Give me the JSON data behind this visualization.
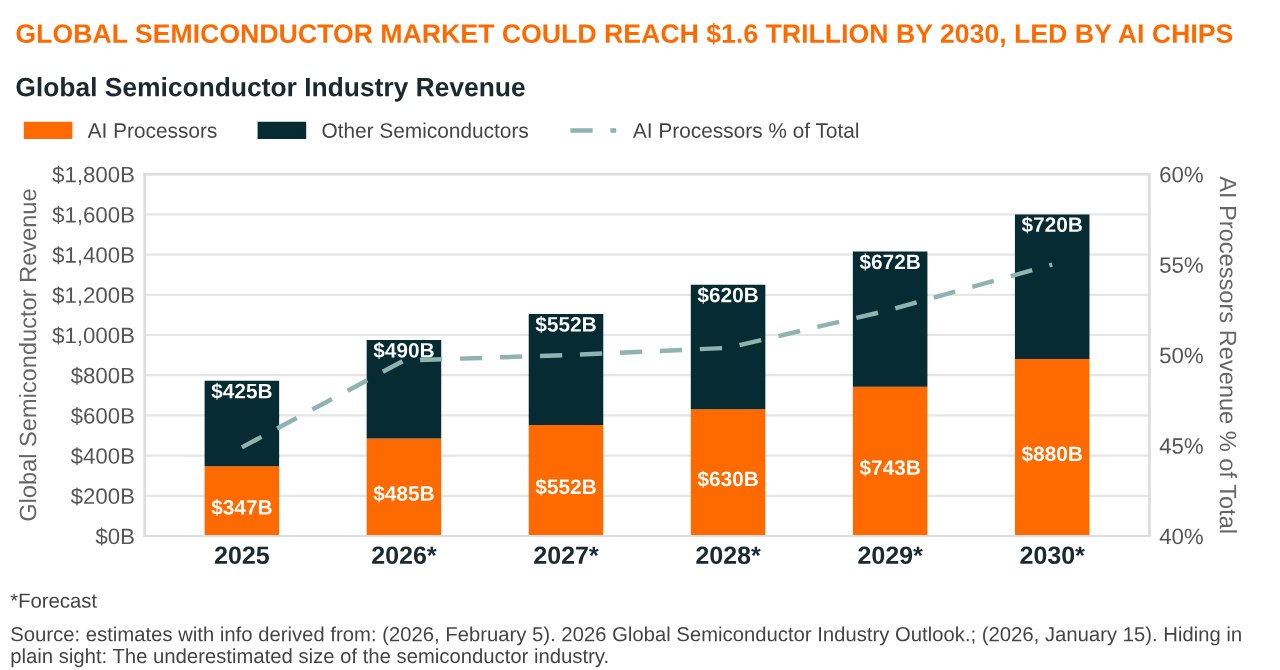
{
  "chart_data": {
    "type": "bar",
    "title": "GLOBAL SEMICONDUCTOR MARKET COULD REACH $1.6 TRILLION BY 2030, LED BY AI CHIPS",
    "subtitle": "Global Semiconductor Industry Revenue",
    "ylabel": "Global Semiconductor Revenue",
    "y2label": "AI Processors Revenue % of Total",
    "categories": [
      "2025",
      "2026*",
      "2027*",
      "2028*",
      "2029*",
      "2030*"
    ],
    "stacked": true,
    "series": [
      {
        "name": "AI Processors",
        "color": "#ff6a00",
        "values": [
          347,
          485,
          552,
          630,
          743,
          880
        ],
        "value_labels": [
          "$347B",
          "$485B",
          "$552B",
          "$630B",
          "$743B",
          "$880B"
        ]
      },
      {
        "name": "Other Semiconductors",
        "color": "#062b33",
        "values": [
          425,
          490,
          552,
          620,
          672,
          720
        ],
        "value_labels": [
          "$425B",
          "$490B",
          "$552B",
          "$620B",
          "$672B",
          "$720B"
        ]
      },
      {
        "name": "AI Processors % of Total",
        "type": "line",
        "axis": "y2",
        "color": "#8fb3b0",
        "line_style": "dashed",
        "marker": "none",
        "values": [
          44.9,
          49.7,
          50.0,
          50.4,
          52.5,
          55.0
        ]
      }
    ],
    "ylim": [
      0,
      1800
    ],
    "yticks": [
      {
        "value": 0,
        "label": "$0B"
      },
      {
        "value": 200,
        "label": "$200B"
      },
      {
        "value": 400,
        "label": "$400B"
      },
      {
        "value": 600,
        "label": "$600B"
      },
      {
        "value": 800,
        "label": "$800B"
      },
      {
        "value": 1000,
        "label": "$1,000B"
      },
      {
        "value": 1200,
        "label": "$1,200B"
      },
      {
        "value": 1400,
        "label": "$1,400B"
      },
      {
        "value": 1600,
        "label": "$1,600B"
      },
      {
        "value": 1800,
        "label": "$1,800B"
      }
    ],
    "y2lim": [
      40,
      60
    ],
    "y2ticks": [
      {
        "value": 40,
        "label": "40%"
      },
      {
        "value": 45,
        "label": "45%"
      },
      {
        "value": 50,
        "label": "50%"
      },
      {
        "value": 55,
        "label": "55%"
      },
      {
        "value": 60,
        "label": "60%"
      }
    ],
    "grid": "y",
    "legend": "top left",
    "annotations": [
      "*Forecast",
      "Source: estimates with info derived from: (2026, February 5). 2026 Global Semiconductor Industry Outlook.; (2026, January 15). Hiding in plain sight: The underestimated size of the semiconductor industry."
    ]
  }
}
